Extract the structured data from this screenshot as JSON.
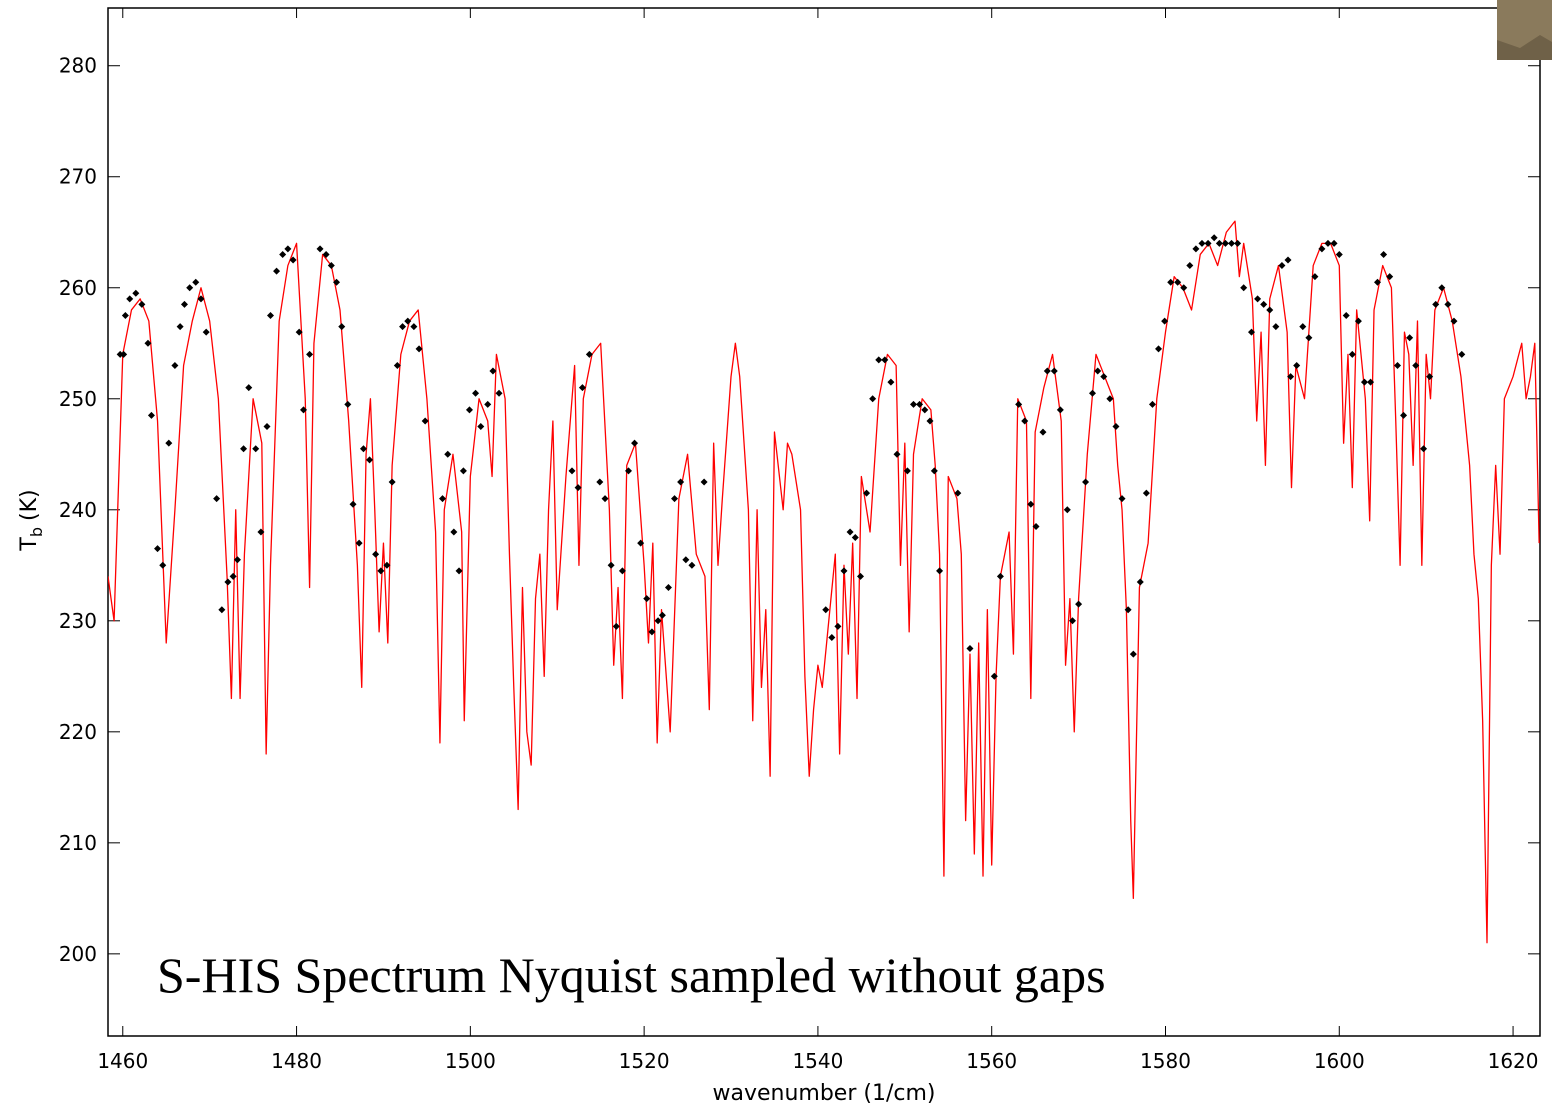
{
  "chart_data": {
    "type": "line",
    "annotation": "S-HIS Spectrum Nyquist sampled without gaps",
    "xlabel": "wavenumber (1/cm)",
    "ylabel": "T",
    "ylabel_sub": "b",
    "ylabel_unit": "(K)",
    "xlim": [
      1458.3,
      1623.1
    ],
    "ylim": [
      192.6,
      285.2
    ],
    "xticks": [
      1460,
      1480,
      1500,
      1520,
      1540,
      1560,
      1580,
      1600,
      1620
    ],
    "yticks": [
      200,
      210,
      220,
      230,
      240,
      250,
      260,
      270,
      280
    ],
    "grid": false,
    "series": [
      {
        "color": "#ff0000",
        "style": "line",
        "x": [
          1458.3,
          1459,
          1460,
          1461,
          1462,
          1463,
          1464,
          1465,
          1466,
          1467,
          1468,
          1469,
          1470,
          1471,
          1472,
          1472.5,
          1473,
          1473.5,
          1474,
          1475,
          1476,
          1476.5,
          1477,
          1478,
          1479,
          1480,
          1481,
          1481.5,
          1482,
          1483,
          1484,
          1485,
          1486,
          1487,
          1487.5,
          1488,
          1488.5,
          1489,
          1489.5,
          1490,
          1490.5,
          1491,
          1492,
          1493,
          1494,
          1495,
          1496,
          1496.5,
          1497,
          1498,
          1499,
          1499.3,
          1500,
          1501,
          1502,
          1502.5,
          1503,
          1504,
          1504.5,
          1505,
          1505.5,
          1506,
          1506.5,
          1507,
          1507.5,
          1508,
          1508.5,
          1509,
          1509.5,
          1510,
          1511,
          1512,
          1512.5,
          1513,
          1514,
          1515,
          1516,
          1516.5,
          1517,
          1517.5,
          1518,
          1519,
          1520,
          1520.5,
          1521,
          1521.5,
          1522,
          1523,
          1524,
          1525,
          1526,
          1527,
          1527.5,
          1528,
          1528.5,
          1529,
          1530,
          1530.5,
          1531,
          1532,
          1532.5,
          1533,
          1533.5,
          1534,
          1534.5,
          1535,
          1536,
          1536.5,
          1537,
          1538,
          1538.5,
          1539,
          1539.5,
          1540,
          1540.5,
          1541,
          1542,
          1542.5,
          1543,
          1543.5,
          1544,
          1544.5,
          1545,
          1546,
          1547,
          1548,
          1549,
          1549.5,
          1550,
          1550.5,
          1551,
          1552,
          1553,
          1553.5,
          1554,
          1554.5,
          1555,
          1556,
          1556.5,
          1557,
          1557.5,
          1558,
          1558.5,
          1559,
          1559.5,
          1560,
          1560.5,
          1561,
          1562,
          1562.5,
          1563,
          1564,
          1564.5,
          1565,
          1566,
          1567,
          1568,
          1568.5,
          1569,
          1569.5,
          1570,
          1571,
          1572,
          1573,
          1574,
          1574.5,
          1575,
          1575.5,
          1576,
          1576.3,
          1577,
          1577.5,
          1578,
          1579,
          1580,
          1581,
          1582,
          1583,
          1584,
          1585,
          1586,
          1587,
          1588,
          1588.5,
          1589,
          1590,
          1590.5,
          1591,
          1591.5,
          1592,
          1593,
          1594,
          1594.5,
          1595,
          1596,
          1597,
          1598,
          1599,
          1600,
          1600.5,
          1601,
          1601.5,
          1602,
          1603,
          1603.5,
          1604,
          1605,
          1606,
          1606.5,
          1607,
          1607.5,
          1608,
          1608.5,
          1609,
          1609.5,
          1610,
          1610.5,
          1611,
          1612,
          1613,
          1614,
          1615,
          1615.5,
          1616,
          1616.5,
          1617,
          1617.5,
          1618,
          1618.5,
          1619,
          1620,
          1621,
          1621.5,
          1622,
          1622.5,
          1623
        ],
        "values": [
          234,
          230,
          254,
          258,
          259,
          257,
          248,
          228,
          240,
          253,
          257,
          260,
          257,
          250,
          234,
          223,
          240,
          223,
          236,
          250,
          246,
          218,
          235,
          257,
          262,
          264,
          250,
          233,
          255,
          263,
          262,
          258,
          248,
          235,
          224,
          245,
          250,
          240,
          229,
          237,
          228,
          244,
          254,
          257,
          258,
          250,
          238,
          219,
          240,
          245,
          238,
          221,
          243,
          250,
          248,
          243,
          254,
          250,
          236,
          224,
          213,
          233,
          220,
          217,
          232,
          236,
          225,
          240,
          248,
          231,
          243,
          253,
          235,
          250,
          254,
          255,
          240,
          226,
          233,
          223,
          244,
          246,
          235,
          228,
          237,
          219,
          231,
          220,
          241,
          245,
          236,
          234,
          222,
          246,
          235,
          241,
          252,
          255,
          252,
          240,
          221,
          240,
          224,
          231,
          216,
          247,
          240,
          246,
          245,
          240,
          225,
          216,
          222,
          226,
          224,
          228,
          236,
          218,
          235,
          227,
          237,
          223,
          243,
          238,
          250,
          254,
          253,
          235,
          246,
          229,
          245,
          250,
          249,
          244,
          236,
          207,
          243,
          241,
          236,
          212,
          227,
          209,
          228,
          207,
          231,
          208,
          225,
          234,
          238,
          227,
          250,
          248,
          223,
          247,
          251,
          254,
          248,
          226,
          232,
          220,
          232,
          245,
          254,
          252,
          250,
          244,
          240,
          231,
          212,
          205,
          233,
          235,
          237,
          250,
          256,
          261,
          260,
          258,
          263,
          264,
          262,
          265,
          266,
          261,
          264,
          259,
          248,
          256,
          244,
          259,
          262,
          256,
          242,
          253,
          250,
          262,
          264,
          264,
          262,
          246,
          254,
          242,
          258,
          250,
          239,
          258,
          262,
          260,
          248,
          235,
          256,
          254,
          244,
          257,
          235,
          254,
          250,
          258,
          260,
          257,
          252,
          244,
          236,
          232,
          221,
          201,
          235,
          244,
          236,
          250,
          252,
          255,
          250,
          252,
          255,
          237
        ]
      },
      {
        "color": "#000000",
        "style": "markers",
        "x": [
          1459.7,
          1460.1,
          1460.3,
          1460.8,
          1461.5,
          1462.2,
          1462.9,
          1463.3,
          1464.0,
          1464.6,
          1465.3,
          1466.0,
          1466.6,
          1467.1,
          1467.7,
          1468.4,
          1469.0,
          1469.6,
          1470.8,
          1471.4,
          1472.1,
          1472.7,
          1473.2,
          1473.9,
          1474.5,
          1475.3,
          1475.9,
          1476.6,
          1477.0,
          1477.7,
          1478.4,
          1479.0,
          1479.6,
          1480.3,
          1480.8,
          1481.5,
          1482.7,
          1483.4,
          1484.0,
          1484.6,
          1485.2,
          1485.9,
          1486.5,
          1487.2,
          1487.7,
          1488.4,
          1489.1,
          1489.7,
          1490.4,
          1491.0,
          1491.6,
          1492.2,
          1492.8,
          1493.5,
          1494.1,
          1494.8,
          1496.8,
          1497.4,
          1498.1,
          1498.7,
          1499.2,
          1499.9,
          1500.6,
          1501.2,
          1502.0,
          1502.6,
          1503.3,
          1511.7,
          1512.4,
          1512.9,
          1513.7,
          1514.9,
          1515.5,
          1516.2,
          1516.8,
          1517.5,
          1518.2,
          1518.9,
          1519.6,
          1520.3,
          1520.9,
          1521.6,
          1522.1,
          1522.8,
          1523.5,
          1524.2,
          1524.8,
          1525.5,
          1526.9,
          1540.9,
          1541.6,
          1542.3,
          1543.0,
          1543.7,
          1544.3,
          1544.9,
          1545.6,
          1546.3,
          1547.0,
          1547.7,
          1548.4,
          1549.1,
          1550.3,
          1551.0,
          1551.7,
          1552.3,
          1552.9,
          1553.4,
          1554.0,
          1556.1,
          1557.5,
          1560.3,
          1561.0,
          1563.1,
          1563.8,
          1564.5,
          1565.1,
          1565.9,
          1566.4,
          1567.2,
          1567.9,
          1568.7,
          1569.3,
          1570.0,
          1570.8,
          1571.6,
          1572.2,
          1572.9,
          1573.6,
          1574.3,
          1575.0,
          1575.7,
          1576.3,
          1577.1,
          1577.8,
          1578.5,
          1579.2,
          1579.9,
          1580.6,
          1581.4,
          1582.1,
          1582.8,
          1583.5,
          1584.2,
          1584.9,
          1585.6,
          1586.2,
          1586.9,
          1587.6,
          1588.3,
          1589.0,
          1589.9,
          1590.6,
          1591.3,
          1592.0,
          1592.7,
          1593.4,
          1594.1,
          1594.4,
          1595.1,
          1595.8,
          1596.5,
          1597.2,
          1598.0,
          1598.7,
          1599.4,
          1600.0,
          1600.8,
          1601.5,
          1602.2,
          1602.9,
          1603.6,
          1604.4,
          1605.1,
          1605.8,
          1606.7,
          1607.4,
          1608.1,
          1608.8,
          1609.7,
          1610.4,
          1611.1,
          1611.8,
          1612.5,
          1613.2,
          1614.1
        ],
        "values": [
          254,
          254,
          257.5,
          259,
          259.5,
          258.5,
          255,
          248.5,
          236.5,
          235,
          246,
          253,
          256.5,
          258.5,
          260,
          260.5,
          259,
          256,
          241,
          231,
          233.5,
          234,
          235.5,
          245.5,
          251,
          245.5,
          238,
          247.5,
          257.5,
          261.5,
          263,
          263.5,
          262.5,
          256,
          249,
          254,
          263.5,
          263,
          262,
          260.5,
          256.5,
          249.5,
          240.5,
          237,
          245.5,
          244.5,
          236,
          234.5,
          235,
          242.5,
          253,
          256.5,
          257,
          256.5,
          254.5,
          248,
          241,
          245,
          238,
          234.5,
          243.5,
          249,
          250.5,
          247.5,
          249.5,
          252.5,
          250.5,
          243.5,
          242,
          251,
          254,
          242.5,
          241,
          235,
          229.5,
          234.5,
          243.5,
          246,
          237,
          232,
          229,
          230,
          230.5,
          233,
          241,
          242.5,
          235.5,
          235,
          242.5,
          231,
          228.5,
          229.5,
          234.5,
          238,
          237.5,
          234,
          241.5,
          250,
          253.5,
          253.5,
          251.5,
          245,
          243.5,
          249.5,
          249.5,
          249,
          248,
          243.5,
          234.5,
          241.5,
          227.5,
          225,
          234,
          249.5,
          248,
          240.5,
          238.5,
          247,
          252.5,
          252.5,
          249,
          240,
          230,
          231.5,
          242.5,
          250.5,
          252.5,
          252,
          250,
          247.5,
          241,
          231,
          227,
          233.5,
          241.5,
          249.5,
          254.5,
          257,
          260.5,
          260.5,
          260,
          262,
          263.5,
          264,
          264,
          264.5,
          264,
          264,
          264,
          264,
          260,
          256,
          259,
          258.5,
          258,
          256.5,
          262,
          262.5,
          252,
          253,
          256.5,
          255.5,
          261,
          263.5,
          264,
          264,
          263,
          257.5,
          254,
          257,
          251.5,
          251.5,
          260.5,
          263,
          261,
          253,
          248.5,
          255.5,
          253,
          245.5,
          252,
          258.5,
          260,
          258.5,
          257,
          254
        ]
      }
    ]
  }
}
